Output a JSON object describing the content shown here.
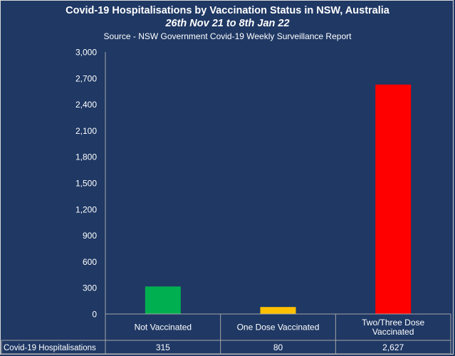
{
  "chart_data": {
    "type": "bar",
    "title": "Covid-19 Hospitalisations by Vaccination Status in NSW, Australia",
    "subtitle": "26th Nov 21 to 8th Jan 22",
    "source": "Source - NSW Government Covid-19 Weekly Surveillance Report",
    "categories": [
      "Not Vaccinated",
      "One Dose Vaccinated",
      "Two/Three Dose Vaccinated"
    ],
    "category_lines": [
      [
        "Not Vaccinated"
      ],
      [
        "One Dose Vaccinated"
      ],
      [
        "Two/Three Dose",
        "Vaccinated"
      ]
    ],
    "series": [
      {
        "name": "Covid-19 Hospitalisations",
        "values": [
          315,
          80,
          2627
        ],
        "value_labels": [
          "315",
          "80",
          "2,627"
        ],
        "colors": [
          "#00b050",
          "#ffc000",
          "#ff0000"
        ]
      }
    ],
    "ylim": [
      0,
      3000
    ],
    "yticks": [
      0,
      300,
      600,
      900,
      1200,
      1500,
      1800,
      2100,
      2400,
      2700,
      3000
    ],
    "ytick_labels": [
      "0",
      "300",
      "600",
      "900",
      "1,200",
      "1,500",
      "1,800",
      "2,100",
      "2,400",
      "2,700",
      "3,000"
    ],
    "data_table": true,
    "grid": false,
    "background": "#1f3864"
  }
}
